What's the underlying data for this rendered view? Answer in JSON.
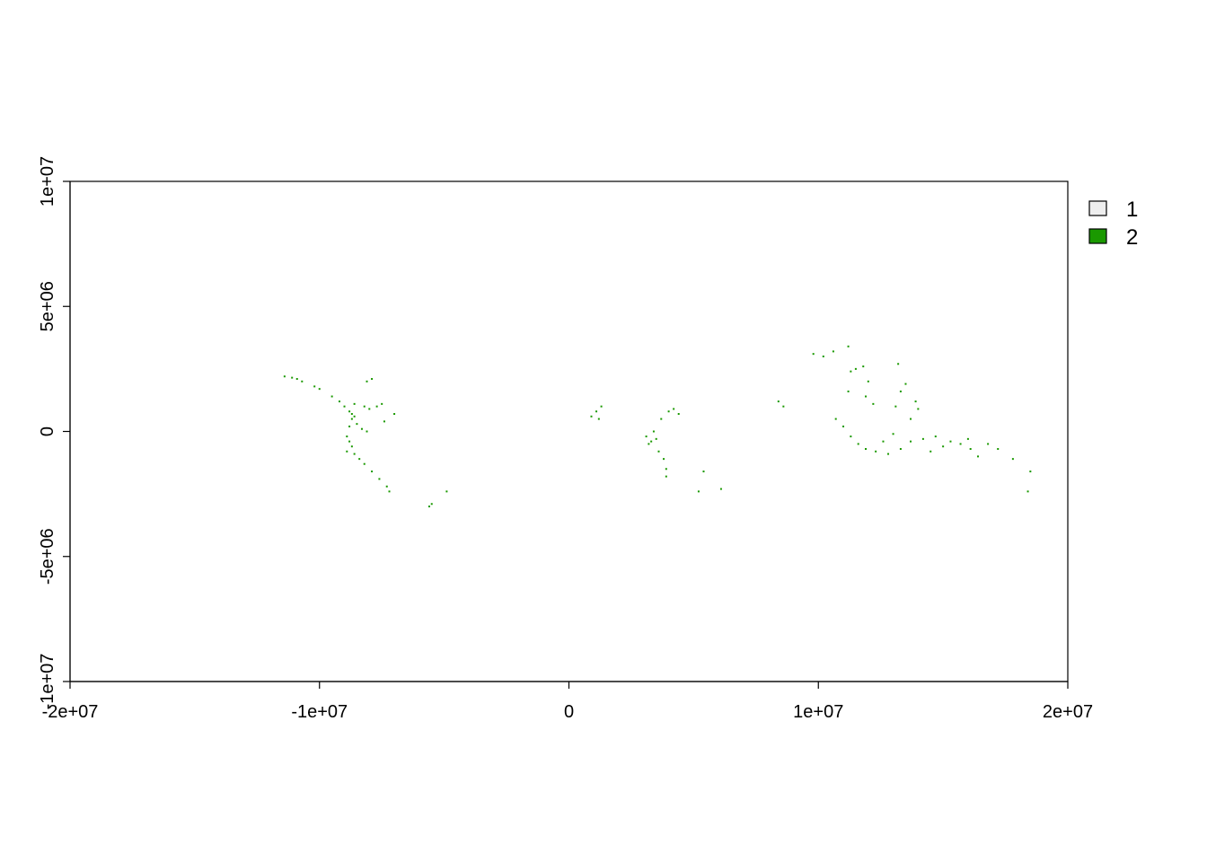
{
  "chart_data": {
    "type": "scatter",
    "title": "",
    "xlabel": "",
    "ylabel": "",
    "xlim": [
      -20000000,
      20000000
    ],
    "ylim": [
      -10000000,
      10000000
    ],
    "x_ticks": [
      {
        "value": -20000000,
        "label": "-2e+07"
      },
      {
        "value": -10000000,
        "label": "-1e+07"
      },
      {
        "value": 0,
        "label": "0"
      },
      {
        "value": 10000000,
        "label": "1e+07"
      },
      {
        "value": 20000000,
        "label": "2e+07"
      }
    ],
    "y_ticks": [
      {
        "value": -10000000,
        "label": "-1e+07"
      },
      {
        "value": -5000000,
        "label": "-5e+06"
      },
      {
        "value": 0,
        "label": "0"
      },
      {
        "value": 5000000,
        "label": "5e+06"
      },
      {
        "value": 10000000,
        "label": "1e+07"
      }
    ],
    "legend": {
      "placement": "right-top",
      "entries": [
        {
          "label": "1",
          "color": "#eeeeee"
        },
        {
          "label": "2",
          "color": "#1a9900"
        }
      ]
    },
    "grid": false,
    "series": [
      {
        "name": "2",
        "color": "#1a9900",
        "points": [
          [
            -11400000,
            2200000
          ],
          [
            -11100000,
            2150000
          ],
          [
            -10900000,
            2100000
          ],
          [
            -10700000,
            2000000
          ],
          [
            -10200000,
            1800000
          ],
          [
            -10000000,
            1700000
          ],
          [
            -9500000,
            1400000
          ],
          [
            -9200000,
            1200000
          ],
          [
            -9000000,
            1000000
          ],
          [
            -8800000,
            800000
          ],
          [
            -8600000,
            600000
          ],
          [
            -8700000,
            700000
          ],
          [
            -8500000,
            300000
          ],
          [
            -8300000,
            100000
          ],
          [
            -8100000,
            0
          ],
          [
            -8000000,
            900000
          ],
          [
            -8200000,
            1000000
          ],
          [
            -8700000,
            500000
          ],
          [
            -8800000,
            200000
          ],
          [
            -8900000,
            -200000
          ],
          [
            -8800000,
            -400000
          ],
          [
            -8700000,
            -600000
          ],
          [
            -8600000,
            -900000
          ],
          [
            -8400000,
            -1100000
          ],
          [
            -8200000,
            -1300000
          ],
          [
            -7900000,
            -1600000
          ],
          [
            -7600000,
            -1900000
          ],
          [
            -7300000,
            -2200000
          ],
          [
            -7200000,
            -2400000
          ],
          [
            -7500000,
            1100000
          ],
          [
            -7700000,
            1000000
          ],
          [
            -7000000,
            700000
          ],
          [
            -8100000,
            2000000
          ],
          [
            -7900000,
            2100000
          ],
          [
            -8600000,
            1100000
          ],
          [
            -8900000,
            -800000
          ],
          [
            -5600000,
            -3000000
          ],
          [
            -5500000,
            -2900000
          ],
          [
            -4900000,
            -2400000
          ],
          [
            -7400000,
            400000
          ],
          [
            900000,
            600000
          ],
          [
            1100000,
            800000
          ],
          [
            1200000,
            500000
          ],
          [
            1300000,
            1000000
          ],
          [
            3100000,
            -200000
          ],
          [
            3300000,
            -400000
          ],
          [
            3400000,
            0
          ],
          [
            3500000,
            -300000
          ],
          [
            3200000,
            -500000
          ],
          [
            3600000,
            -800000
          ],
          [
            3800000,
            -1100000
          ],
          [
            3900000,
            -1500000
          ],
          [
            3700000,
            500000
          ],
          [
            4000000,
            800000
          ],
          [
            4200000,
            900000
          ],
          [
            4400000,
            700000
          ],
          [
            3900000,
            -1800000
          ],
          [
            5200000,
            -2400000
          ],
          [
            5400000,
            -1600000
          ],
          [
            6100000,
            -2300000
          ],
          [
            8400000,
            1200000
          ],
          [
            8600000,
            1000000
          ],
          [
            9800000,
            3100000
          ],
          [
            10200000,
            3000000
          ],
          [
            10600000,
            3200000
          ],
          [
            11200000,
            3400000
          ],
          [
            11500000,
            2500000
          ],
          [
            11800000,
            2600000
          ],
          [
            11300000,
            2400000
          ],
          [
            12000000,
            2000000
          ],
          [
            11900000,
            1400000
          ],
          [
            11200000,
            1600000
          ],
          [
            10700000,
            500000
          ],
          [
            11000000,
            200000
          ],
          [
            11300000,
            -200000
          ],
          [
            11600000,
            -500000
          ],
          [
            11900000,
            -700000
          ],
          [
            12300000,
            -800000
          ],
          [
            12800000,
            -900000
          ],
          [
            13300000,
            -700000
          ],
          [
            13700000,
            -400000
          ],
          [
            14200000,
            -300000
          ],
          [
            14700000,
            -200000
          ],
          [
            15300000,
            -400000
          ],
          [
            15700000,
            -500000
          ],
          [
            16100000,
            -700000
          ],
          [
            16400000,
            -1000000
          ],
          [
            16800000,
            -500000
          ],
          [
            17200000,
            -700000
          ],
          [
            17800000,
            -1100000
          ],
          [
            18500000,
            -1600000
          ],
          [
            18400000,
            -2400000
          ],
          [
            13200000,
            2700000
          ],
          [
            13500000,
            1900000
          ],
          [
            13300000,
            1600000
          ],
          [
            13100000,
            1000000
          ],
          [
            13700000,
            500000
          ],
          [
            14000000,
            900000
          ],
          [
            12600000,
            -400000
          ],
          [
            13000000,
            -100000
          ],
          [
            14500000,
            -800000
          ],
          [
            15000000,
            -600000
          ],
          [
            16000000,
            -300000
          ],
          [
            13900000,
            1200000
          ],
          [
            12200000,
            1100000
          ]
        ]
      }
    ]
  }
}
